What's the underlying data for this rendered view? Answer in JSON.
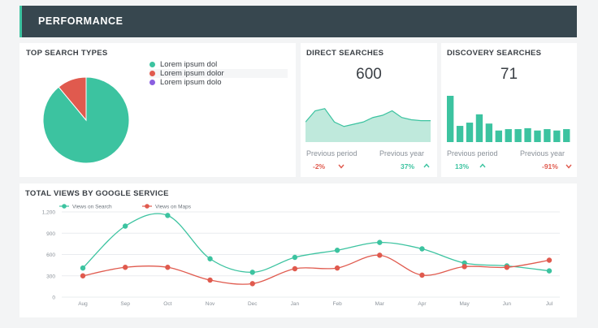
{
  "header": {
    "title": "PERFORMANCE"
  },
  "top_search": {
    "title": "TOP SEARCH TYPES",
    "legend": [
      {
        "label": "Lorem ipsum dol",
        "color": "#3cc3a0"
      },
      {
        "label": "Lorem ipsum dolor",
        "color": "#e05a4e"
      },
      {
        "label": "Lorem ipsum dolo",
        "color": "#8a5fe0"
      }
    ]
  },
  "direct": {
    "title": "DIRECT SEARCHES",
    "value": "600",
    "prev_period_label": "Previous period",
    "prev_year_label": "Previous year",
    "prev_period_delta": "-2%",
    "prev_year_delta": "37%"
  },
  "discovery": {
    "title": "DISCOVERY SEARCHES",
    "value": "71",
    "prev_period_label": "Previous period",
    "prev_year_label": "Previous year",
    "prev_period_delta": "13%",
    "prev_year_delta": "-91%"
  },
  "views": {
    "title": "TOTAL VIEWS BY GOOGLE SERVICE"
  },
  "chart_data": [
    {
      "type": "pie",
      "title": "TOP SEARCH TYPES",
      "categories": [
        "Lorem ipsum dol",
        "Lorem ipsum dolor",
        "Lorem ipsum dolo"
      ],
      "values": [
        89,
        11,
        0
      ],
      "colors": [
        "#3cc3a0",
        "#e05a4e",
        "#8a5fe0"
      ]
    },
    {
      "type": "area",
      "title": "DIRECT SEARCHES",
      "values": [
        45,
        70,
        75,
        45,
        35,
        40,
        45,
        55,
        60,
        70,
        55,
        50,
        48,
        48
      ],
      "ylim": [
        0,
        100
      ],
      "color": "#3cc3a0"
    },
    {
      "type": "bar",
      "title": "DISCOVERY SEARCHES",
      "values": [
        100,
        35,
        42,
        60,
        40,
        25,
        28,
        28,
        30,
        25,
        28,
        25,
        28
      ],
      "ylim": [
        0,
        100
      ],
      "color": "#3cc3a0"
    },
    {
      "type": "line",
      "title": "TOTAL VIEWS BY GOOGLE SERVICE",
      "categories": [
        "Aug",
        "Sep",
        "Oct",
        "Nov",
        "Dec",
        "Jan",
        "Feb",
        "Mar",
        "Apr",
        "May",
        "Jun",
        "Jul"
      ],
      "yticks": [
        "0",
        "300",
        "600",
        "900",
        "1,200"
      ],
      "ylim": [
        0,
        1200
      ],
      "series": [
        {
          "name": "Views on Search",
          "color": "#3cc3a0",
          "values": [
            410,
            1000,
            1150,
            540,
            350,
            560,
            660,
            770,
            680,
            480,
            440,
            370
          ]
        },
        {
          "name": "Views on Maps",
          "color": "#e05a4e",
          "values": [
            300,
            420,
            420,
            240,
            190,
            400,
            410,
            590,
            310,
            430,
            420,
            520
          ]
        }
      ]
    }
  ]
}
